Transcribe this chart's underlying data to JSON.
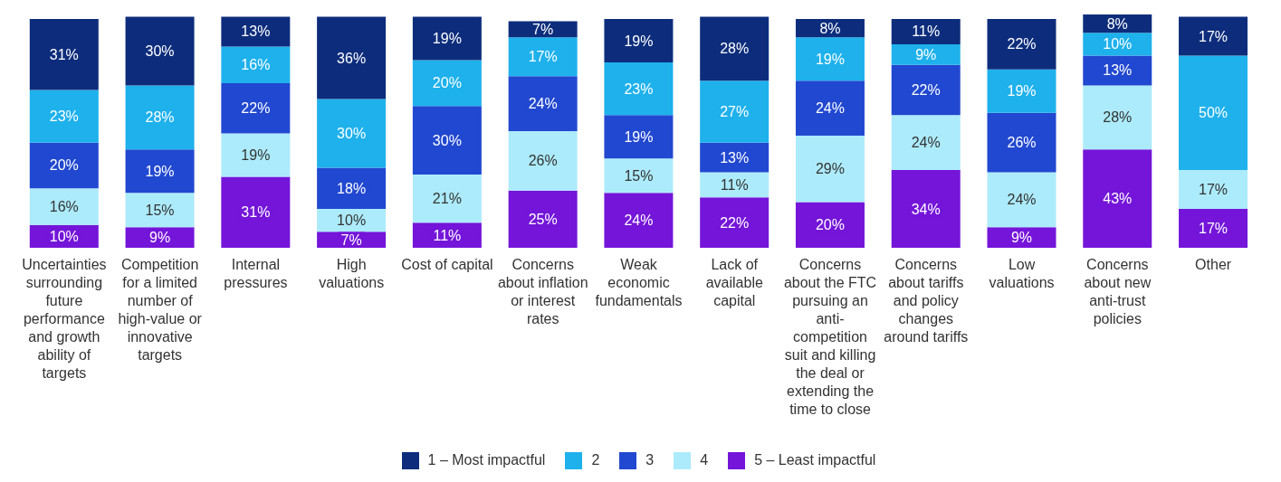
{
  "chart_data": {
    "type": "bar",
    "stacked": true,
    "legend": "bottom",
    "categories": [
      "Uncertainties surrounding future performance and growth ability of targets",
      "Competition for a limited number of high-value or innovative targets",
      "Internal pressures",
      "High valuations",
      "Cost of capital",
      "Concerns about inflation or interest rates",
      "Weak economic fundamentals",
      "Lack of available capital",
      "Concerns about the FTC pursuing an anti-competition suit and killing the deal or extending the time to close",
      "Concerns about tariffs and policy changes around tariffs",
      "Low valuations",
      "Concerns about new anti-trust policies",
      "Other"
    ],
    "series": [
      {
        "name": "5 – Least impactful",
        "color": "#7415d9",
        "values": [
          10,
          9,
          31,
          7,
          11,
          25,
          24,
          22,
          20,
          34,
          9,
          43,
          17
        ],
        "value_labels": [
          "10%",
          "9%",
          "31%",
          "7%",
          "11%",
          "25%",
          "24%",
          "22%",
          "20%",
          "34%",
          "9%",
          "43%",
          "17%"
        ]
      },
      {
        "name": "4",
        "color": "#acebfb",
        "values": [
          16,
          15,
          19,
          10,
          21,
          26,
          15,
          11,
          29,
          24,
          24,
          28,
          17
        ],
        "value_labels": [
          "16%",
          "15%",
          "19%",
          "10%",
          "21%",
          "26%",
          "15%",
          "11%",
          "29%",
          "24%",
          "24%",
          "28%",
          "17%"
        ]
      },
      {
        "name": "3",
        "color": "#2148d0",
        "values": [
          20,
          19,
          22,
          18,
          30,
          24,
          19,
          13,
          24,
          22,
          26,
          13,
          null
        ],
        "value_labels": [
          "20%",
          "19%",
          "22%",
          "18%",
          "30%",
          "24%",
          "19%",
          "13%",
          "24%",
          "22%",
          "26%",
          "13%",
          null
        ]
      },
      {
        "name": "2",
        "color": "#1eb1ec",
        "values": [
          23,
          28,
          16,
          30,
          20,
          17,
          23,
          27,
          19,
          9,
          19,
          10,
          50
        ],
        "value_labels": [
          "23%",
          "28%",
          "16%",
          "30%",
          "20%",
          "17%",
          "23%",
          "27%",
          "19%",
          "9%",
          "19%",
          "10%",
          "50%"
        ]
      },
      {
        "name": "1 – Most impactful",
        "color": "#0d2d7c",
        "values": [
          31,
          30,
          13,
          36,
          19,
          7,
          19,
          28,
          8,
          11,
          22,
          8,
          17
        ],
        "value_labels": [
          "31%",
          "30%",
          "13%",
          "36%",
          "19%",
          "7%",
          "19%",
          "28%",
          "8%",
          "11%",
          "22%",
          "8%",
          "17%"
        ]
      }
    ]
  }
}
